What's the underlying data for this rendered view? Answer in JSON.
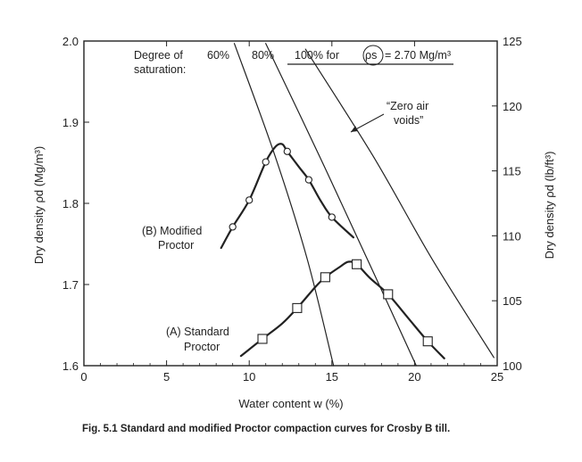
{
  "chart_data": {
    "type": "line",
    "xlabel": "Water content w (%)",
    "ylabel": "Dry density ρd (Mg/m³)",
    "ylabel_right": "Dry density ρd (lb/ft³)",
    "xlim": [
      0,
      25
    ],
    "ylim": [
      1.6,
      2.0
    ],
    "ylim_right": [
      100,
      125
    ],
    "x_ticks": [
      0,
      5,
      10,
      15,
      20,
      25
    ],
    "y_ticks": [
      1.6,
      1.7,
      1.8,
      1.9,
      2.0
    ],
    "y_tick_labels": [
      "1.6",
      "1.7",
      "1.8",
      "1.9",
      "2.0"
    ],
    "y2_ticks": [
      100,
      105,
      110,
      115,
      120,
      125
    ],
    "grid": false,
    "series": [
      {
        "name": "(B) Modified Proctor",
        "marker": "circle",
        "points": [
          [
            9.0,
            1.771
          ],
          [
            10.0,
            1.804
          ],
          [
            11.0,
            1.851
          ],
          [
            12.3,
            1.864
          ],
          [
            13.6,
            1.829
          ],
          [
            15.0,
            1.783
          ]
        ],
        "curve": [
          [
            8.3,
            1.745
          ],
          [
            9.0,
            1.771
          ],
          [
            10.0,
            1.804
          ],
          [
            11.0,
            1.851
          ],
          [
            11.6,
            1.87
          ],
          [
            12.0,
            1.873
          ],
          [
            12.3,
            1.864
          ],
          [
            13.0,
            1.845
          ],
          [
            13.6,
            1.829
          ],
          [
            14.3,
            1.804
          ],
          [
            15.0,
            1.783
          ],
          [
            16.3,
            1.758
          ]
        ]
      },
      {
        "name": "(A) Standard Proctor",
        "marker": "square",
        "points": [
          [
            10.8,
            1.633
          ],
          [
            12.9,
            1.671
          ],
          [
            14.6,
            1.709
          ],
          [
            16.5,
            1.725
          ],
          [
            18.4,
            1.688
          ],
          [
            20.8,
            1.63
          ]
        ],
        "curve": [
          [
            9.5,
            1.612
          ],
          [
            10.8,
            1.633
          ],
          [
            12.0,
            1.652
          ],
          [
            12.9,
            1.671
          ],
          [
            14.0,
            1.697
          ],
          [
            14.6,
            1.709
          ],
          [
            15.5,
            1.722
          ],
          [
            16.0,
            1.728
          ],
          [
            16.5,
            1.725
          ],
          [
            17.3,
            1.708
          ],
          [
            18.4,
            1.688
          ],
          [
            19.6,
            1.659
          ],
          [
            20.8,
            1.63
          ],
          [
            21.8,
            1.609
          ]
        ]
      },
      {
        "name": "60%",
        "curve": [
          [
            9.1,
            1.997
          ],
          [
            11.5,
            1.862
          ],
          [
            13.5,
            1.732
          ],
          [
            15.1,
            1.6
          ]
        ]
      },
      {
        "name": "80%",
        "curve": [
          [
            11.0,
            1.997
          ],
          [
            14.3,
            1.856
          ],
          [
            17.4,
            1.72
          ],
          [
            20.1,
            1.6
          ]
        ]
      },
      {
        "name": "100% for ρs = 2.70 Mg/m³",
        "curve": [
          [
            13.4,
            1.99
          ],
          [
            17.5,
            1.858
          ],
          [
            21.1,
            1.73
          ],
          [
            24.8,
            1.61
          ]
        ]
      }
    ],
    "annotations": {
      "saturation_heading_line1": "Degree of",
      "saturation_heading_line2": "saturation:",
      "label_60": "60%",
      "label_80": "80%",
      "label_100": "100% for",
      "rho_s_symbol": "ρs",
      "rho_s_value": "= 2.70 Mg/m³",
      "zero_air_line1": "“Zero air",
      "zero_air_line2": "voids”",
      "modified_line1": "(B) Modified",
      "modified_line2": "Proctor",
      "standard_line1": "(A) Standard",
      "standard_line2": "Proctor"
    }
  },
  "caption": {
    "label": "Fig. 5.1",
    "text": "Standard and modified Proctor compaction curves for Crosby B till."
  }
}
